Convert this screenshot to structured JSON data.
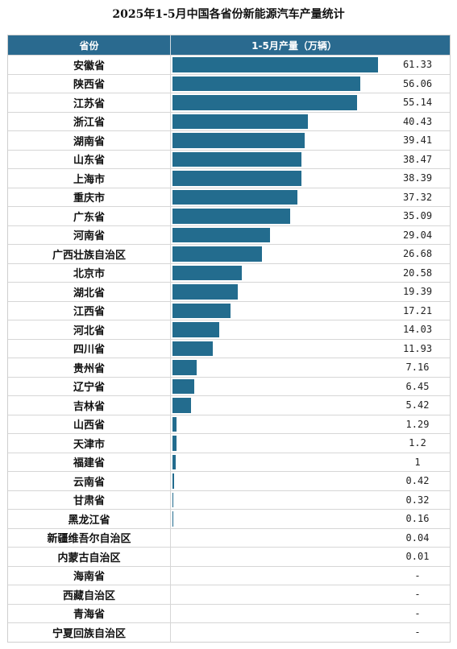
{
  "title": "2025年1-5月中国各省份新能源汽车产量统计",
  "header": {
    "col1": "省份",
    "col2": "1-5月产量（万辆）"
  },
  "chart_data": {
    "type": "bar",
    "orientation": "horizontal",
    "title": "2025年1-5月中国各省份新能源汽车产量统计",
    "xlabel": "1-5月产量（万辆）",
    "ylabel": "省份",
    "bar_color": "#236c8e",
    "header_color": "#2a6a8f",
    "xlim": [
      0,
      61.33
    ],
    "categories": [
      "安徽省",
      "陕西省",
      "江苏省",
      "浙江省",
      "湖南省",
      "山东省",
      "上海市",
      "重庆市",
      "广东省",
      "河南省",
      "广西壮族自治区",
      "北京市",
      "湖北省",
      "江西省",
      "河北省",
      "四川省",
      "贵州省",
      "辽宁省",
      "吉林省",
      "山西省",
      "天津市",
      "福建省",
      "云南省",
      "甘肃省",
      "黑龙江省",
      "新疆维吾尔自治区",
      "内蒙古自治区",
      "海南省",
      "西藏自治区",
      "青海省",
      "宁夏回族自治区"
    ],
    "values": [
      61.33,
      56.06,
      55.14,
      40.43,
      39.41,
      38.47,
      38.39,
      37.32,
      35.09,
      29.04,
      26.68,
      20.58,
      19.39,
      17.21,
      14.03,
      11.93,
      7.16,
      6.45,
      5.42,
      1.29,
      1.2,
      1,
      0.42,
      0.32,
      0.16,
      0.04,
      0.01,
      null,
      null,
      null,
      null
    ],
    "labels": [
      "61.33",
      "56.06",
      "55.14",
      "40.43",
      "39.41",
      "38.47",
      "38.39",
      "37.32",
      "35.09",
      "29.04",
      "26.68",
      "20.58",
      "19.39",
      "17.21",
      "14.03",
      "11.93",
      "7.16",
      "6.45",
      "5.42",
      "1.29",
      "1.2",
      "1",
      "0.42",
      "0.32",
      "0.16",
      "0.04",
      "0.01",
      "-",
      "-",
      "-",
      "-"
    ]
  }
}
